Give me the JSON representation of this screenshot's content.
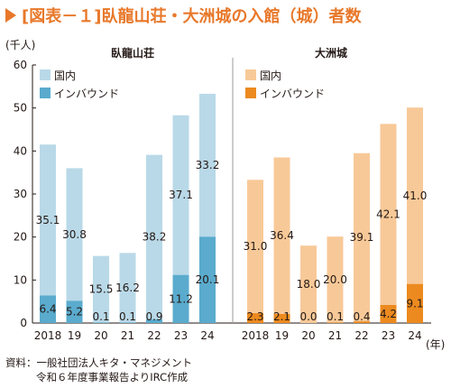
{
  "title": "[図表－１]臥龍山荘・大洲城の入館（城）者数",
  "source_lines": [
    "資料：一般社団法人キタ・マネジメント",
    "令和６年度事業報告よりIRC作成"
  ],
  "chart_data": {
    "type": "bar",
    "stacked": true,
    "y_unit_label": "(千人)",
    "x_unit_label": "(年)",
    "ylim": [
      0,
      60
    ],
    "yticks": [
      "0",
      "10",
      "20",
      "30",
      "40",
      "50",
      "60"
    ],
    "categories": [
      "2018",
      "19",
      "20",
      "21",
      "22",
      "23",
      "24"
    ],
    "panels": [
      {
        "title": "臥龍山荘",
        "series": [
          {
            "name": "国内",
            "color": "#b9d9e8",
            "values": [
              35.1,
              30.8,
              15.5,
              16.2,
              38.2,
              37.1,
              33.2
            ]
          },
          {
            "name": "インバウンド",
            "color": "#5aabcd",
            "values": [
              6.4,
              5.2,
              0.1,
              0.1,
              0.9,
              11.2,
              20.1
            ]
          }
        ]
      },
      {
        "title": "大洲城",
        "series": [
          {
            "name": "国内",
            "color": "#f8c998",
            "values": [
              31.0,
              36.4,
              18.0,
              20.0,
              39.1,
              42.1,
              41.0
            ]
          },
          {
            "name": "インバウンド",
            "color": "#ec8a1f",
            "values": [
              2.3,
              2.1,
              0.0,
              0.1,
              0.4,
              4.2,
              9.1
            ]
          }
        ]
      }
    ],
    "grid": false,
    "legend_position": "top-left"
  }
}
